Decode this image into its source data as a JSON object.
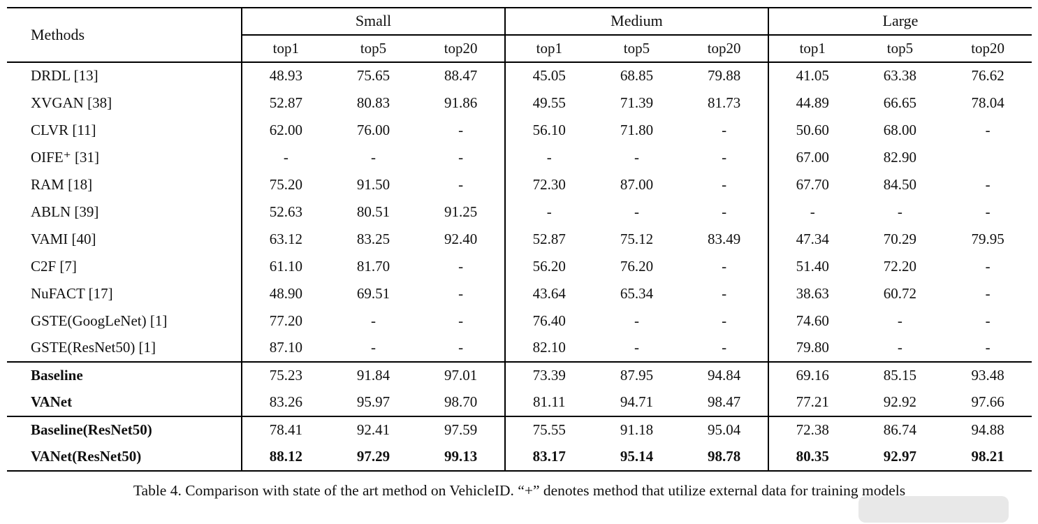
{
  "table": {
    "methods_header": "Methods",
    "groups": [
      "Small",
      "Medium",
      "Large"
    ],
    "sub_headers": [
      "top1",
      "top5",
      "top20"
    ],
    "sections": [
      {
        "rows": [
          {
            "method": "DRDL [13]",
            "bold": false,
            "bold_values": false,
            "values": [
              "48.93",
              "75.65",
              "88.47",
              "45.05",
              "68.85",
              "79.88",
              "41.05",
              "63.38",
              "76.62"
            ]
          },
          {
            "method": "XVGAN [38]",
            "bold": false,
            "bold_values": false,
            "values": [
              "52.87",
              "80.83",
              "91.86",
              "49.55",
              "71.39",
              "81.73",
              "44.89",
              "66.65",
              "78.04"
            ]
          },
          {
            "method": "CLVR [11]",
            "bold": false,
            "bold_values": false,
            "values": [
              "62.00",
              "76.00",
              "-",
              "56.10",
              "71.80",
              "-",
              "50.60",
              "68.00",
              "-"
            ]
          },
          {
            "method": "OIFE⁺ [31]",
            "bold": false,
            "bold_values": false,
            "values": [
              "-",
              "-",
              "-",
              "-",
              "-",
              "-",
              "67.00",
              "82.90",
              ""
            ]
          },
          {
            "method": "RAM [18]",
            "bold": false,
            "bold_values": false,
            "values": [
              "75.20",
              "91.50",
              "-",
              "72.30",
              "87.00",
              "-",
              "67.70",
              "84.50",
              "-"
            ]
          },
          {
            "method": "ABLN [39]",
            "bold": false,
            "bold_values": false,
            "values": [
              "52.63",
              "80.51",
              "91.25",
              "-",
              "-",
              "-",
              "-",
              "-",
              "-"
            ]
          },
          {
            "method": "VAMI [40]",
            "bold": false,
            "bold_values": false,
            "values": [
              "63.12",
              "83.25",
              "92.40",
              "52.87",
              "75.12",
              "83.49",
              "47.34",
              "70.29",
              "79.95"
            ]
          },
          {
            "method": "C2F [7]",
            "bold": false,
            "bold_values": false,
            "values": [
              "61.10",
              "81.70",
              "-",
              "56.20",
              "76.20",
              "-",
              "51.40",
              "72.20",
              "-"
            ]
          },
          {
            "method": "NuFACT [17]",
            "bold": false,
            "bold_values": false,
            "values": [
              "48.90",
              "69.51",
              "-",
              "43.64",
              "65.34",
              "-",
              "38.63",
              "60.72",
              "-"
            ]
          },
          {
            "method": "GSTE(GoogLeNet) [1]",
            "bold": false,
            "bold_values": false,
            "values": [
              "77.20",
              "-",
              "-",
              "76.40",
              "-",
              "-",
              "74.60",
              "-",
              "-"
            ]
          },
          {
            "method": "GSTE(ResNet50) [1]",
            "bold": false,
            "bold_values": false,
            "values": [
              "87.10",
              "-",
              "-",
              "82.10",
              "-",
              "-",
              "79.80",
              "-",
              "-"
            ]
          }
        ]
      },
      {
        "rows": [
          {
            "method": "Baseline",
            "bold": true,
            "bold_values": false,
            "values": [
              "75.23",
              "91.84",
              "97.01",
              "73.39",
              "87.95",
              "94.84",
              "69.16",
              "85.15",
              "93.48"
            ]
          },
          {
            "method": "VANet",
            "bold": true,
            "bold_values": false,
            "values": [
              "83.26",
              "95.97",
              "98.70",
              "81.11",
              "94.71",
              "98.47",
              "77.21",
              "92.92",
              "97.66"
            ]
          }
        ]
      },
      {
        "rows": [
          {
            "method": "Baseline(ResNet50)",
            "bold": true,
            "bold_values": false,
            "values": [
              "78.41",
              "92.41",
              "97.59",
              "75.55",
              "91.18",
              "95.04",
              "72.38",
              "86.74",
              "94.88"
            ]
          },
          {
            "method": "VANet(ResNet50)",
            "bold": true,
            "bold_values": true,
            "values": [
              "88.12",
              "97.29",
              "99.13",
              "83.17",
              "95.14",
              "98.78",
              "80.35",
              "92.97",
              "98.21"
            ]
          }
        ]
      }
    ]
  },
  "caption": "Table 4. Comparison with state of the art method on VehicleID. “+” denotes method that utilize external data for training models"
}
